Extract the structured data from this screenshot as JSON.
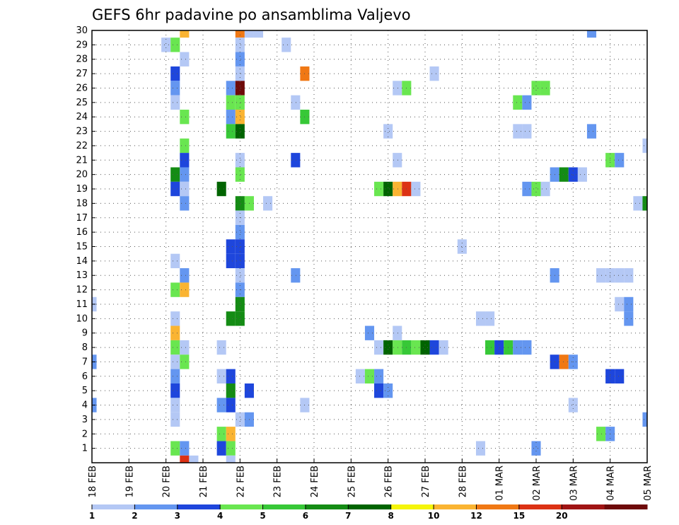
{
  "chart_data": {
    "type": "heatmap",
    "title": "GEFS 6hr padavine po ansamblima Valjevo",
    "xlabel": "",
    "ylabel": "",
    "y_ticks": [
      1,
      2,
      3,
      4,
      5,
      6,
      7,
      8,
      9,
      10,
      11,
      12,
      13,
      14,
      15,
      16,
      17,
      18,
      19,
      20,
      21,
      22,
      23,
      24,
      25,
      26,
      27,
      28,
      29,
      30
    ],
    "ylim": [
      0,
      30
    ],
    "x_unit": "6h step",
    "x_ticks": [
      {
        "step": 0,
        "label": "18 FEB"
      },
      {
        "step": 4,
        "label": "19 FEB"
      },
      {
        "step": 8,
        "label": "20 FEB"
      },
      {
        "step": 12,
        "label": "21 FEB"
      },
      {
        "step": 16,
        "label": "22 FEB"
      },
      {
        "step": 20,
        "label": "23 FEB"
      },
      {
        "step": 24,
        "label": "24 FEB"
      },
      {
        "step": 28,
        "label": "25 FEB"
      },
      {
        "step": 32,
        "label": "26 FEB"
      },
      {
        "step": 36,
        "label": "27 FEB"
      },
      {
        "step": 40,
        "label": "28 FEB"
      },
      {
        "step": 44,
        "label": "01 MAR"
      },
      {
        "step": 48,
        "label": "02 MAR"
      },
      {
        "step": 52,
        "label": "03 MAR"
      },
      {
        "step": 56,
        "label": "04 MAR"
      },
      {
        "step": 60,
        "label": "05 MAR"
      }
    ],
    "xlim": [
      0,
      60
    ],
    "grid": true,
    "colorbar": {
      "position": "bottom",
      "labels": [
        "1",
        "2",
        "3",
        "4",
        "5",
        "6",
        "7",
        "8",
        "10",
        "12",
        "15",
        "20"
      ],
      "colors": [
        "#b4c8f5",
        "#6496f0",
        "#1e46dc",
        "#69e650",
        "#37c837",
        "#148c14",
        "#006400",
        "#f5f50a",
        "#fab432",
        "#f07814",
        "#dc3214",
        "#a01414",
        "#6e0a0a"
      ]
    },
    "cells": [
      {
        "member": 30,
        "step": 10,
        "value": 10
      },
      {
        "member": 30,
        "step": 16,
        "value": 12
      },
      {
        "member": 30,
        "step": 17,
        "value": 1
      },
      {
        "member": 30,
        "step": 18,
        "value": 1
      },
      {
        "member": 30,
        "step": 54,
        "value": 2
      },
      {
        "member": 29,
        "step": 8,
        "value": 1
      },
      {
        "member": 29,
        "step": 9,
        "value": 4
      },
      {
        "member": 29,
        "step": 16,
        "value": 1
      },
      {
        "member": 29,
        "step": 21,
        "value": 1
      },
      {
        "member": 28,
        "step": 10,
        "value": 1
      },
      {
        "member": 28,
        "step": 16,
        "value": 2
      },
      {
        "member": 27,
        "step": 9,
        "value": 3
      },
      {
        "member": 27,
        "step": 16,
        "value": 1
      },
      {
        "member": 27,
        "step": 23,
        "value": 12
      },
      {
        "member": 27,
        "step": 37,
        "value": 1
      },
      {
        "member": 26,
        "step": 9,
        "value": 2
      },
      {
        "member": 26,
        "step": 15,
        "value": 2
      },
      {
        "member": 26,
        "step": 16,
        "value": 20
      },
      {
        "member": 26,
        "step": 33,
        "value": 1
      },
      {
        "member": 26,
        "step": 34,
        "value": 4
      },
      {
        "member": 26,
        "step": 48,
        "value": 4
      },
      {
        "member": 26,
        "step": 49,
        "value": 4
      },
      {
        "member": 25,
        "step": 9,
        "value": 1
      },
      {
        "member": 25,
        "step": 15,
        "value": 4
      },
      {
        "member": 25,
        "step": 16,
        "value": 4
      },
      {
        "member": 25,
        "step": 22,
        "value": 1
      },
      {
        "member": 25,
        "step": 46,
        "value": 4
      },
      {
        "member": 25,
        "step": 47,
        "value": 2
      },
      {
        "member": 24,
        "step": 10,
        "value": 4
      },
      {
        "member": 24,
        "step": 15,
        "value": 2
      },
      {
        "member": 24,
        "step": 16,
        "value": 10
      },
      {
        "member": 24,
        "step": 23,
        "value": 5
      },
      {
        "member": 23,
        "step": 15,
        "value": 5
      },
      {
        "member": 23,
        "step": 16,
        "value": 7
      },
      {
        "member": 23,
        "step": 32,
        "value": 1
      },
      {
        "member": 23,
        "step": 46,
        "value": 1
      },
      {
        "member": 23,
        "step": 47,
        "value": 1
      },
      {
        "member": 23,
        "step": 54,
        "value": 2
      },
      {
        "member": 22,
        "step": 10,
        "value": 4
      },
      {
        "member": 22,
        "step": 60,
        "value": 1
      },
      {
        "member": 21,
        "step": 10,
        "value": 3
      },
      {
        "member": 21,
        "step": 16,
        "value": 1
      },
      {
        "member": 21,
        "step": 22,
        "value": 3
      },
      {
        "member": 21,
        "step": 33,
        "value": 1
      },
      {
        "member": 21,
        "step": 56,
        "value": 4
      },
      {
        "member": 21,
        "step": 57,
        "value": 2
      },
      {
        "member": 20,
        "step": 9,
        "value": 6
      },
      {
        "member": 20,
        "step": 10,
        "value": 2
      },
      {
        "member": 20,
        "step": 16,
        "value": 4
      },
      {
        "member": 20,
        "step": 50,
        "value": 2
      },
      {
        "member": 20,
        "step": 51,
        "value": 6
      },
      {
        "member": 20,
        "step": 52,
        "value": 3
      },
      {
        "member": 20,
        "step": 53,
        "value": 1
      },
      {
        "member": 19,
        "step": 9,
        "value": 3
      },
      {
        "member": 19,
        "step": 10,
        "value": 1
      },
      {
        "member": 19,
        "step": 14,
        "value": 7
      },
      {
        "member": 19,
        "step": 31,
        "value": 4
      },
      {
        "member": 19,
        "step": 32,
        "value": 7
      },
      {
        "member": 19,
        "step": 33,
        "value": 10
      },
      {
        "member": 19,
        "step": 34,
        "value": 15
      },
      {
        "member": 19,
        "step": 35,
        "value": 1
      },
      {
        "member": 19,
        "step": 47,
        "value": 2
      },
      {
        "member": 19,
        "step": 48,
        "value": 4
      },
      {
        "member": 19,
        "step": 49,
        "value": 1
      },
      {
        "member": 18,
        "step": 10,
        "value": 2
      },
      {
        "member": 18,
        "step": 16,
        "value": 6
      },
      {
        "member": 18,
        "step": 17,
        "value": 4
      },
      {
        "member": 18,
        "step": 19,
        "value": 1
      },
      {
        "member": 18,
        "step": 59,
        "value": 1
      },
      {
        "member": 18,
        "step": 60,
        "value": 6
      },
      {
        "member": 17,
        "step": 16,
        "value": 1
      },
      {
        "member": 16,
        "step": 16,
        "value": 2
      },
      {
        "member": 15,
        "step": 15,
        "value": 3
      },
      {
        "member": 15,
        "step": 16,
        "value": 3
      },
      {
        "member": 15,
        "step": 40,
        "value": 1
      },
      {
        "member": 14,
        "step": 9,
        "value": 1
      },
      {
        "member": 14,
        "step": 15,
        "value": 3
      },
      {
        "member": 14,
        "step": 16,
        "value": 3
      },
      {
        "member": 13,
        "step": 10,
        "value": 2
      },
      {
        "member": 13,
        "step": 16,
        "value": 1
      },
      {
        "member": 13,
        "step": 22,
        "value": 2
      },
      {
        "member": 13,
        "step": 50,
        "value": 2
      },
      {
        "member": 13,
        "step": 55,
        "value": 1
      },
      {
        "member": 13,
        "step": 56,
        "value": 1
      },
      {
        "member": 13,
        "step": 57,
        "value": 1
      },
      {
        "member": 13,
        "step": 58,
        "value": 1
      },
      {
        "member": 12,
        "step": 9,
        "value": 4
      },
      {
        "member": 12,
        "step": 10,
        "value": 10
      },
      {
        "member": 12,
        "step": 16,
        "value": 2
      },
      {
        "member": 11,
        "step": 0,
        "value": 1
      },
      {
        "member": 11,
        "step": 16,
        "value": 6
      },
      {
        "member": 11,
        "step": 57,
        "value": 1
      },
      {
        "member": 11,
        "step": 58,
        "value": 2
      },
      {
        "member": 10,
        "step": 9,
        "value": 1
      },
      {
        "member": 10,
        "step": 15,
        "value": 6
      },
      {
        "member": 10,
        "step": 16,
        "value": 6
      },
      {
        "member": 10,
        "step": 42,
        "value": 1
      },
      {
        "member": 10,
        "step": 43,
        "value": 1
      },
      {
        "member": 10,
        "step": 58,
        "value": 2
      },
      {
        "member": 9,
        "step": 9,
        "value": 10
      },
      {
        "member": 9,
        "step": 30,
        "value": 2
      },
      {
        "member": 9,
        "step": 33,
        "value": 1
      },
      {
        "member": 8,
        "step": 9,
        "value": 4
      },
      {
        "member": 8,
        "step": 10,
        "value": 1
      },
      {
        "member": 8,
        "step": 14,
        "value": 1
      },
      {
        "member": 8,
        "step": 31,
        "value": 1
      },
      {
        "member": 8,
        "step": 32,
        "value": 7
      },
      {
        "member": 8,
        "step": 33,
        "value": 4
      },
      {
        "member": 8,
        "step": 34,
        "value": 5
      },
      {
        "member": 8,
        "step": 35,
        "value": 4
      },
      {
        "member": 8,
        "step": 36,
        "value": 7
      },
      {
        "member": 8,
        "step": 37,
        "value": 3
      },
      {
        "member": 8,
        "step": 38,
        "value": 1
      },
      {
        "member": 8,
        "step": 43,
        "value": 5
      },
      {
        "member": 8,
        "step": 44,
        "value": 3
      },
      {
        "member": 8,
        "step": 45,
        "value": 5
      },
      {
        "member": 8,
        "step": 46,
        "value": 2
      },
      {
        "member": 8,
        "step": 47,
        "value": 2
      },
      {
        "member": 7,
        "step": 0,
        "value": 2
      },
      {
        "member": 7,
        "step": 9,
        "value": 1
      },
      {
        "member": 7,
        "step": 10,
        "value": 4
      },
      {
        "member": 7,
        "step": 50,
        "value": 3
      },
      {
        "member": 7,
        "step": 51,
        "value": 12
      },
      {
        "member": 7,
        "step": 52,
        "value": 2
      },
      {
        "member": 6,
        "step": 9,
        "value": 2
      },
      {
        "member": 6,
        "step": 14,
        "value": 1
      },
      {
        "member": 6,
        "step": 15,
        "value": 3
      },
      {
        "member": 6,
        "step": 29,
        "value": 1
      },
      {
        "member": 6,
        "step": 30,
        "value": 4
      },
      {
        "member": 6,
        "step": 31,
        "value": 2
      },
      {
        "member": 6,
        "step": 56,
        "value": 3
      },
      {
        "member": 6,
        "step": 57,
        "value": 3
      },
      {
        "member": 5,
        "step": 9,
        "value": 3
      },
      {
        "member": 5,
        "step": 15,
        "value": 6
      },
      {
        "member": 5,
        "step": 17,
        "value": 3
      },
      {
        "member": 5,
        "step": 31,
        "value": 3
      },
      {
        "member": 5,
        "step": 32,
        "value": 2
      },
      {
        "member": 4,
        "step": 0,
        "value": 2
      },
      {
        "member": 4,
        "step": 9,
        "value": 1
      },
      {
        "member": 4,
        "step": 14,
        "value": 2
      },
      {
        "member": 4,
        "step": 15,
        "value": 3
      },
      {
        "member": 4,
        "step": 23,
        "value": 1
      },
      {
        "member": 4,
        "step": 52,
        "value": 1
      },
      {
        "member": 3,
        "step": 9,
        "value": 1
      },
      {
        "member": 3,
        "step": 16,
        "value": 1
      },
      {
        "member": 3,
        "step": 17,
        "value": 2
      },
      {
        "member": 3,
        "step": 60,
        "value": 2
      },
      {
        "member": 2,
        "step": 14,
        "value": 4
      },
      {
        "member": 2,
        "step": 15,
        "value": 10
      },
      {
        "member": 2,
        "step": 55,
        "value": 4
      },
      {
        "member": 2,
        "step": 56,
        "value": 2
      },
      {
        "member": 1,
        "step": 9,
        "value": 4
      },
      {
        "member": 1,
        "step": 10,
        "value": 2
      },
      {
        "member": 1,
        "step": 14,
        "value": 3
      },
      {
        "member": 1,
        "step": 15,
        "value": 4
      },
      {
        "member": 1,
        "step": 42,
        "value": 1
      },
      {
        "member": 1,
        "step": 48,
        "value": 2
      },
      {
        "member": 0,
        "step": 10,
        "value": 15
      },
      {
        "member": 0,
        "step": 11,
        "value": 1
      },
      {
        "member": 0,
        "step": 15,
        "value": 1
      }
    ]
  }
}
